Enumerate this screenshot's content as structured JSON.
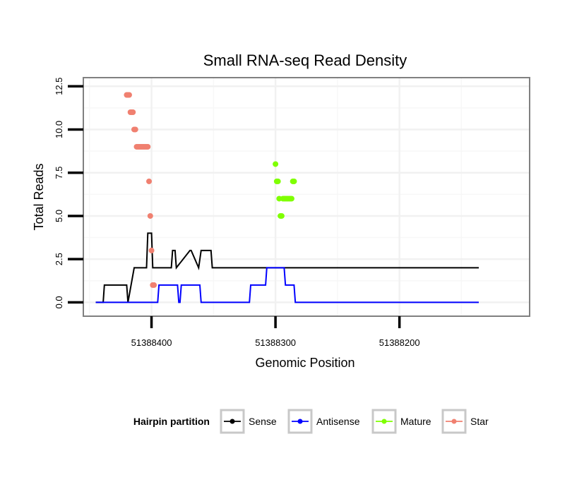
{
  "chart_data": {
    "type": "line",
    "title": "Small RNA-seq Read Density",
    "xlabel": "Genomic Position",
    "ylabel": "Total Reads",
    "x_reversed": true,
    "xlim": [
      51388455,
      51388095
    ],
    "ylim": [
      -0.8,
      13
    ],
    "x_ticks": [
      51388400,
      51388300,
      51388200
    ],
    "x_tick_labels": [
      "51388400",
      "51388300",
      "51388200"
    ],
    "y_ticks": [
      0,
      2.5,
      5,
      7.5,
      10,
      12.5
    ],
    "y_tick_labels": [
      "0.0",
      "2.5",
      "5.0",
      "7.5",
      "10.0",
      "12.5"
    ],
    "grid": true,
    "legend": {
      "title": "Hairpin partition",
      "placement": "bottom",
      "entries": [
        "Sense",
        "Antisense",
        "Mature",
        "Star"
      ]
    },
    "colors": {
      "Sense": "#000000",
      "Antisense": "#0000ff",
      "Mature": "#7fff00",
      "Star": "#f08070"
    },
    "series": [
      {
        "name": "Sense",
        "type": "step-line",
        "x": [
          51388445,
          51388439,
          51388438,
          51388420,
          51388419,
          51388414,
          51388413,
          51388410,
          51388409,
          51388404,
          51388403,
          51388400,
          51388399,
          51388397,
          51388396,
          51388389,
          51388388,
          51388384,
          51388383,
          51388381,
          51388380,
          51388369,
          51388368,
          51388362,
          51388360,
          51388352,
          51388351,
          51388342,
          51388341,
          51388334,
          51388333,
          51388331,
          51388330,
          51388328,
          51388327,
          51388325,
          51388324,
          51388322,
          51388321,
          51388318,
          51388317,
          51388316,
          51388315,
          51388313,
          51388311,
          51388309,
          51388308,
          51388307,
          51388306,
          51388305,
          51388304,
          51388302,
          51388301,
          51388299,
          51388298,
          51388293,
          51388292,
          51388290,
          51388289,
          51388286,
          51388285,
          51388284,
          51388283,
          51388281,
          51388280,
          51388275,
          51388274,
          51388273,
          51388272,
          51388270,
          51388269,
          51388265,
          51388264,
          51388261,
          51388260,
          51388258,
          51388257,
          51388255,
          51388254,
          51388227,
          51388226,
          51388224,
          51388223,
          51388222,
          51388221,
          51388219,
          51388218,
          51388207,
          51388206,
          51388204,
          51388203,
          51388202,
          51388201,
          51388178,
          51388177,
          51388170,
          51388169,
          51388162,
          51388161,
          51388146,
          51388145,
          51388136
        ],
        "y": [
          0,
          0,
          1,
          1,
          0,
          2,
          2,
          2,
          2,
          2,
          4,
          4,
          2,
          2,
          2,
          2,
          2,
          2,
          3,
          3,
          2,
          3,
          3,
          2,
          3,
          3,
          2,
          2,
          2,
          2,
          2,
          2,
          2,
          2,
          2,
          2,
          2,
          2,
          2,
          2,
          2,
          2,
          2,
          2,
          2,
          2,
          2,
          2,
          2,
          2,
          2,
          2,
          2,
          2,
          2,
          2,
          2,
          2,
          2,
          2,
          2,
          2,
          2,
          2,
          2,
          2,
          2,
          2,
          2,
          2,
          2,
          2,
          2,
          2,
          2,
          2,
          2,
          2,
          2,
          2,
          2,
          2,
          2,
          2,
          2,
          2,
          2,
          2,
          2,
          2,
          2,
          2,
          2,
          2,
          2,
          2,
          2,
          2,
          2,
          2,
          2,
          2
        ]
      },
      {
        "name": "Antisense",
        "type": "line",
        "x": [
          51388445,
          51388395,
          51388394,
          51388379,
          51388378,
          51388377,
          51388376,
          51388361,
          51388360,
          51388321,
          51388320,
          51388308,
          51388307,
          51388293,
          51388292,
          51388285,
          51388284,
          51388136
        ],
        "y": [
          0,
          0,
          1,
          1,
          0,
          0,
          1,
          1,
          0,
          0,
          1,
          1,
          2,
          2,
          1,
          1,
          0,
          0
        ]
      },
      {
        "name": "Mature",
        "type": "points",
        "x": [
          51388300,
          51388299,
          51388298,
          51388297,
          51388296,
          51388295,
          51388294,
          51388293,
          51388292,
          51388291,
          51388290,
          51388289,
          51388288,
          51388287,
          51388286,
          51388285
        ],
        "y": [
          8,
          7,
          7,
          6,
          5,
          5,
          6,
          6,
          6,
          6,
          6,
          6,
          6,
          6,
          7,
          7
        ]
      },
      {
        "name": "Star",
        "type": "points",
        "x": [
          51388420,
          51388419,
          51388418,
          51388417,
          51388416,
          51388415,
          51388414,
          51388413,
          51388412,
          51388411,
          51388410,
          51388409,
          51388408,
          51388407,
          51388406,
          51388405,
          51388404,
          51388403,
          51388402,
          51388401,
          51388400,
          51388399,
          51388398
        ],
        "y": [
          12,
          12,
          12,
          11,
          11,
          11,
          10,
          10,
          9,
          9,
          9,
          9,
          9,
          9,
          9,
          9,
          9,
          9,
          7,
          5,
          3,
          1,
          1
        ]
      }
    ]
  }
}
